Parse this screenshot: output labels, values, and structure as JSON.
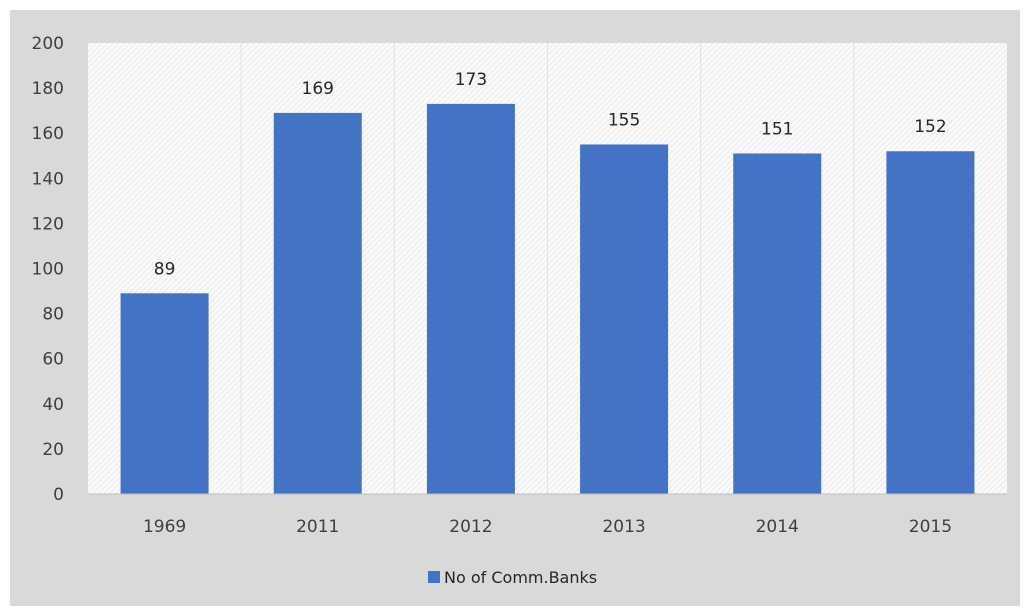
{
  "chart_data": {
    "type": "bar",
    "categories": [
      "1969",
      "2011",
      "2012",
      "2013",
      "2014",
      "2015"
    ],
    "series": [
      {
        "name": "No of Comm.Banks",
        "values": [
          89,
          169,
          173,
          155,
          151,
          152
        ],
        "color": "#4472c4"
      }
    ],
    "data_labels": [
      "89",
      "169",
      "173",
      "155",
      "151",
      "152"
    ],
    "ylim": [
      0,
      200
    ],
    "yticks": [
      "0",
      "20",
      "40",
      "60",
      "80",
      "100",
      "120",
      "140",
      "160",
      "180",
      "200"
    ],
    "grid": true,
    "legend_position": "bottom",
    "title": "",
    "xlabel": "",
    "ylabel": ""
  }
}
